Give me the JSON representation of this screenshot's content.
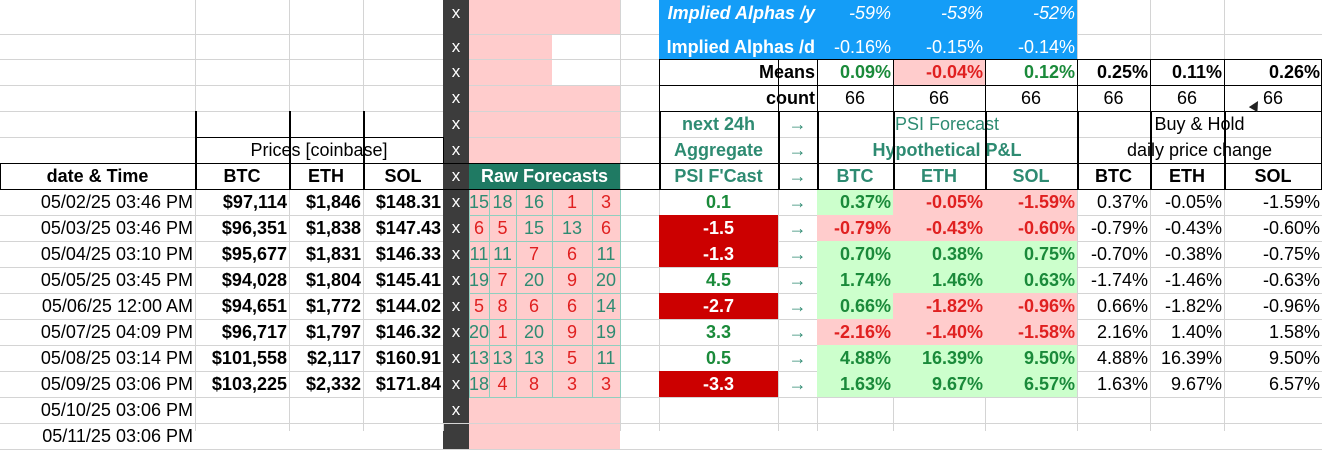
{
  "summary": {
    "alpha_y": {
      "label": "Implied Alphas /y",
      "btc": "-59%",
      "eth": "-53%",
      "sol": "-52%"
    },
    "alpha_d": {
      "label": "Implied Alphas /d",
      "btc": "-0.16%",
      "eth": "-0.15%",
      "sol": "-0.14%"
    },
    "means": {
      "label": "Means",
      "btc": "0.09%",
      "eth": "-0.04%",
      "sol": "0.12%",
      "hold_btc": "0.25%",
      "hold_eth": "0.11%",
      "hold_sol": "0.26%"
    },
    "count": {
      "label": "count",
      "btc": "66",
      "eth": "66",
      "sol": "66",
      "hold_btc": "66",
      "hold_eth": "66",
      "hold_sol": "66"
    }
  },
  "headers": {
    "prices_group": "Prices [coinbase]",
    "date_time": "date & Time",
    "btc": "BTC",
    "eth": "ETH",
    "sol": "SOL",
    "raw_forecasts": "Raw Forecasts",
    "next24h": "next 24h",
    "aggregate": "Aggregate",
    "psi_fcast": "PSI F'Cast",
    "arrow": "→",
    "psi_forecast": "PSI Forecast",
    "hypo_pl": "Hypothetical P&L",
    "buy_hold": "Buy & Hold",
    "daily_change": "daily price change",
    "x_mark": "x"
  },
  "rows": [
    {
      "date": "05/02/25 03:46 PM",
      "btc": "$97,114",
      "eth": "$1,846",
      "sol": "$148.31",
      "raw": [
        "15",
        "18",
        "16",
        "1",
        "3"
      ],
      "agg": "0.1",
      "pl": [
        "0.37%",
        "-0.05%",
        "-1.59%"
      ],
      "bh": [
        "0.37%",
        "-0.05%",
        "-1.59%"
      ]
    },
    {
      "date": "05/03/25 03:46 PM",
      "btc": "$96,351",
      "eth": "$1,838",
      "sol": "$147.43",
      "raw": [
        "6",
        "5",
        "15",
        "13",
        "6"
      ],
      "agg": "-1.5",
      "pl": [
        "-0.79%",
        "-0.43%",
        "-0.60%"
      ],
      "bh": [
        "-0.79%",
        "-0.43%",
        "-0.60%"
      ]
    },
    {
      "date": "05/04/25 03:10 PM",
      "btc": "$95,677",
      "eth": "$1,831",
      "sol": "$146.33",
      "raw": [
        "11",
        "11",
        "7",
        "6",
        "11"
      ],
      "agg": "-1.3",
      "pl": [
        "0.70%",
        "0.38%",
        "0.75%"
      ],
      "bh": [
        "-0.70%",
        "-0.38%",
        "-0.75%"
      ]
    },
    {
      "date": "05/05/25 03:45 PM",
      "btc": "$94,028",
      "eth": "$1,804",
      "sol": "$145.41",
      "raw": [
        "19",
        "7",
        "20",
        "9",
        "20"
      ],
      "agg": "4.5",
      "pl": [
        "1.74%",
        "1.46%",
        "0.63%"
      ],
      "bh": [
        "-1.74%",
        "-1.46%",
        "-0.63%"
      ]
    },
    {
      "date": "05/06/25 12:00 AM",
      "btc": "$94,651",
      "eth": "$1,772",
      "sol": "$144.02",
      "raw": [
        "5",
        "8",
        "6",
        "6",
        "14"
      ],
      "agg": "-2.7",
      "pl": [
        "0.66%",
        "-1.82%",
        "-0.96%"
      ],
      "bh": [
        "0.66%",
        "-1.82%",
        "-0.96%"
      ]
    },
    {
      "date": "05/07/25 04:09 PM",
      "btc": "$96,717",
      "eth": "$1,797",
      "sol": "$146.32",
      "raw": [
        "20",
        "1",
        "20",
        "9",
        "19"
      ],
      "agg": "3.3",
      "pl": [
        "-2.16%",
        "-1.40%",
        "-1.58%"
      ],
      "bh": [
        "2.16%",
        "1.40%",
        "1.58%"
      ]
    },
    {
      "date": "05/08/25 03:14 PM",
      "btc": "$101,558",
      "eth": "$2,117",
      "sol": "$160.91",
      "raw": [
        "13",
        "13",
        "13",
        "5",
        "11"
      ],
      "agg": "0.5",
      "pl": [
        "4.88%",
        "16.39%",
        "9.50%"
      ],
      "bh": [
        "4.88%",
        "16.39%",
        "9.50%"
      ]
    },
    {
      "date": "05/09/25 03:06 PM",
      "btc": "$103,225",
      "eth": "$2,332",
      "sol": "$171.84",
      "raw": [
        "18",
        "4",
        "8",
        "3",
        "3"
      ],
      "agg": "-3.3",
      "pl": [
        "1.63%",
        "9.67%",
        "6.57%"
      ],
      "bh": [
        "1.63%",
        "9.67%",
        "6.57%"
      ]
    }
  ],
  "extra_dates": [
    "05/10/25 03:06 PM",
    "05/11/25 03:06 PM"
  ],
  "colors": {
    "blue": "#149df7",
    "pink": "#ffcccc",
    "light_green": "#ccffcc",
    "green_text": "#1a8a3a",
    "red_text": "#e02020",
    "teal_text": "#2e8b72",
    "teal_fill": "#1f7a63",
    "dark_red": "#cc0000",
    "x_column": "#3c3c3c"
  }
}
